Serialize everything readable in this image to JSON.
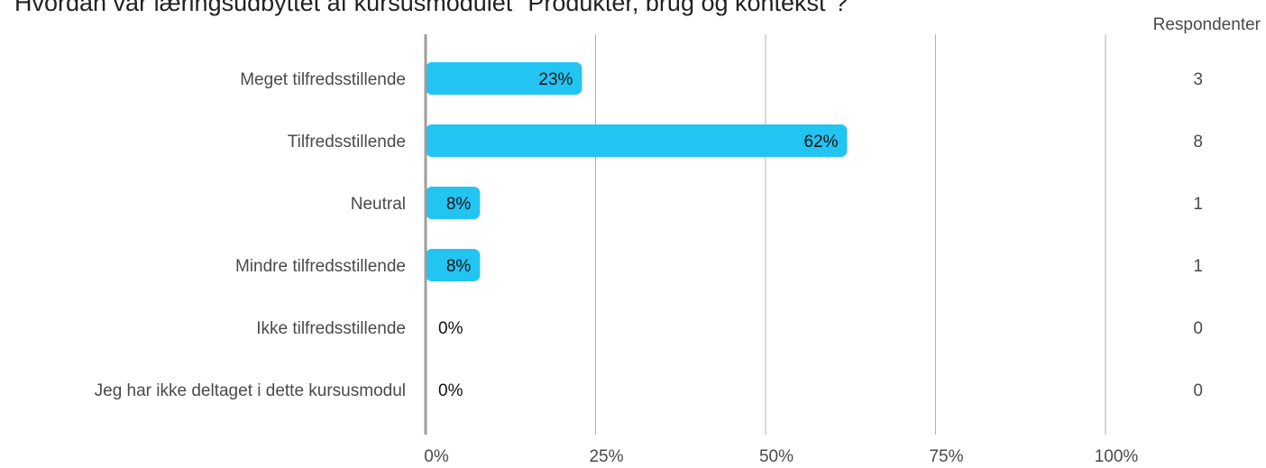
{
  "title": "Hvordan var læringsudbyttet af kursusmodulet \"Produkter, brug og kontekst\"?",
  "respondents_header": "Respondenter",
  "colors": {
    "bar": "#22c4f2",
    "grid": "#b0b0b0",
    "axis": "#9e9e9e"
  },
  "chart_data": {
    "type": "bar",
    "orientation": "horizontal",
    "categories": [
      "Meget tilfredsstillende",
      "Tilfredsstillende",
      "Neutral",
      "Mindre tilfredsstillende",
      "Ikke tilfredsstillende",
      "Jeg har ikke deltaget i dette kursusmodul"
    ],
    "values": [
      23,
      62,
      8,
      8,
      0,
      0
    ],
    "value_labels": [
      "23%",
      "62%",
      "8%",
      "8%",
      "0%",
      "0%"
    ],
    "respondents": [
      "3",
      "8",
      "1",
      "1",
      "0",
      "0"
    ],
    "xlim": [
      0,
      100
    ],
    "xticks": [
      "0%",
      "25%",
      "50%",
      "75%",
      "100%"
    ],
    "grid": true,
    "legend": "none"
  }
}
